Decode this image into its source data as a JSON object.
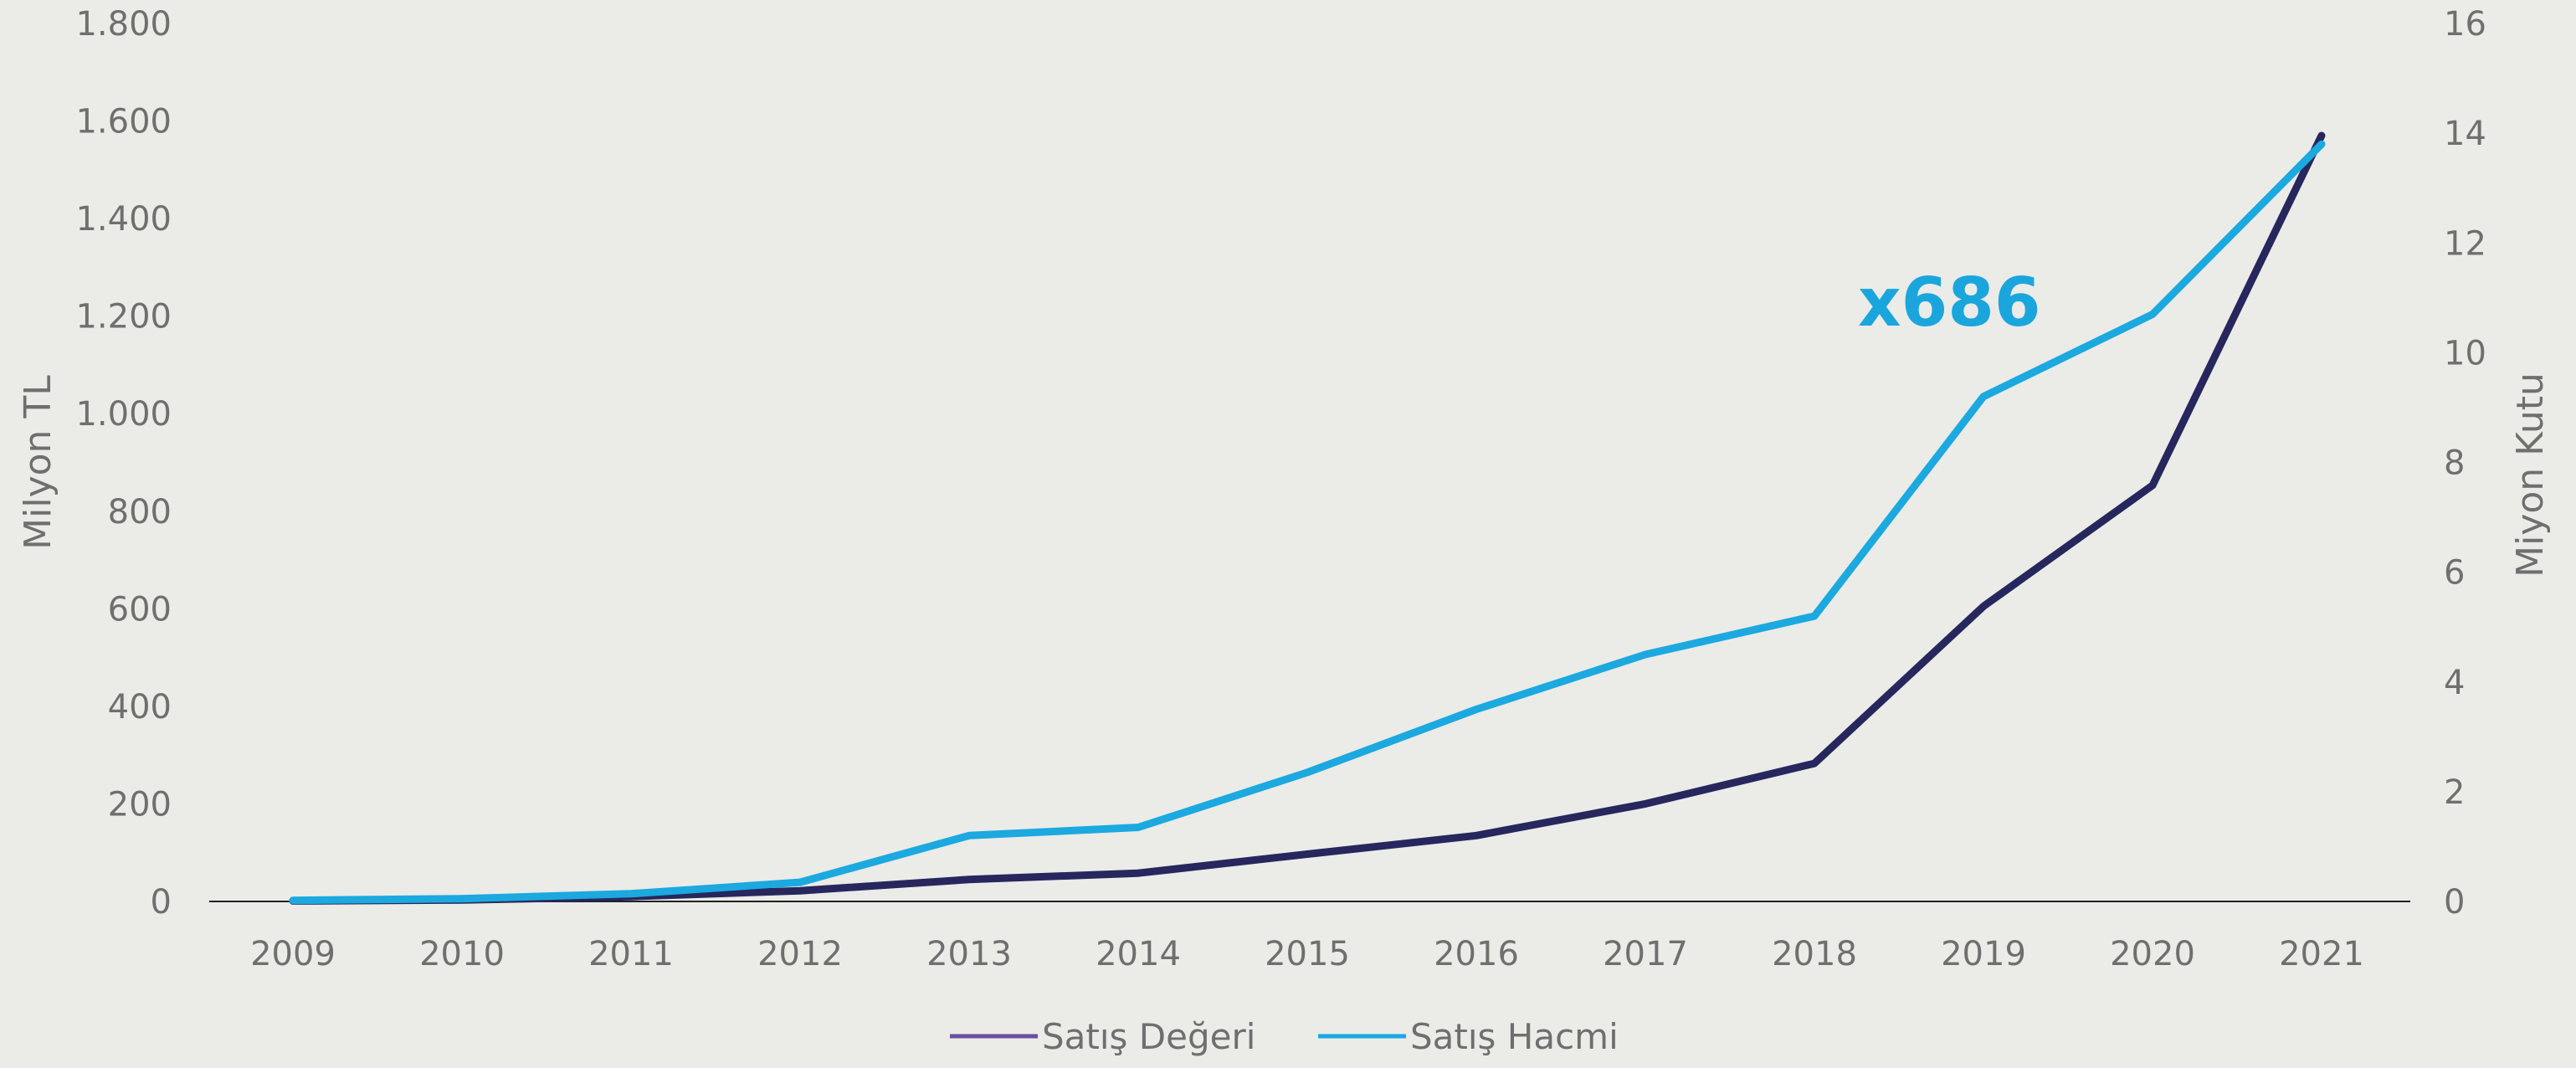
{
  "chart_data": {
    "type": "line",
    "categories": [
      "2009",
      "2010",
      "2011",
      "2012",
      "2013",
      "2014",
      "2015",
      "2016",
      "2017",
      "2018",
      "2019",
      "2020",
      "2021"
    ],
    "y_left": {
      "label": "Milyon TL",
      "ylim": [
        0,
        1800
      ],
      "ticks": [
        0,
        200,
        400,
        600,
        800,
        1000,
        1200,
        1400,
        1600,
        1800
      ],
      "tick_labels": [
        "0",
        "200",
        "400",
        "600",
        "800",
        "1.000",
        "1.200",
        "1.400",
        "1.600",
        "1.800"
      ]
    },
    "y_right": {
      "label": "Miyon Kutu",
      "ylim": [
        0,
        16
      ],
      "ticks": [
        0,
        2,
        4,
        6,
        8,
        10,
        12,
        14,
        16
      ],
      "tick_labels": [
        "0",
        "2",
        "4",
        "6",
        "8",
        "10",
        "12",
        "14",
        "16"
      ]
    },
    "series": [
      {
        "name": "Satış Değeri",
        "axis": "left",
        "color": "#27275e",
        "legend_color": "#6b4fa0",
        "values": [
          1,
          3,
          10,
          22,
          45,
          58,
          97,
          135,
          200,
          283,
          605,
          853,
          1570
        ]
      },
      {
        "name": "Satış Hacmi",
        "axis": "right",
        "color": "#1ba9df",
        "legend_color": "#1ba9df",
        "values": [
          0.02,
          0.05,
          0.14,
          0.35,
          1.2,
          1.35,
          2.35,
          3.5,
          4.5,
          5.2,
          9.2,
          10.7,
          13.8
        ]
      }
    ],
    "annotation": {
      "text": "x686",
      "x": "2018",
      "y_right": 10.8,
      "color": "#1aa6dd"
    },
    "grid": false,
    "legend": "bottom"
  }
}
